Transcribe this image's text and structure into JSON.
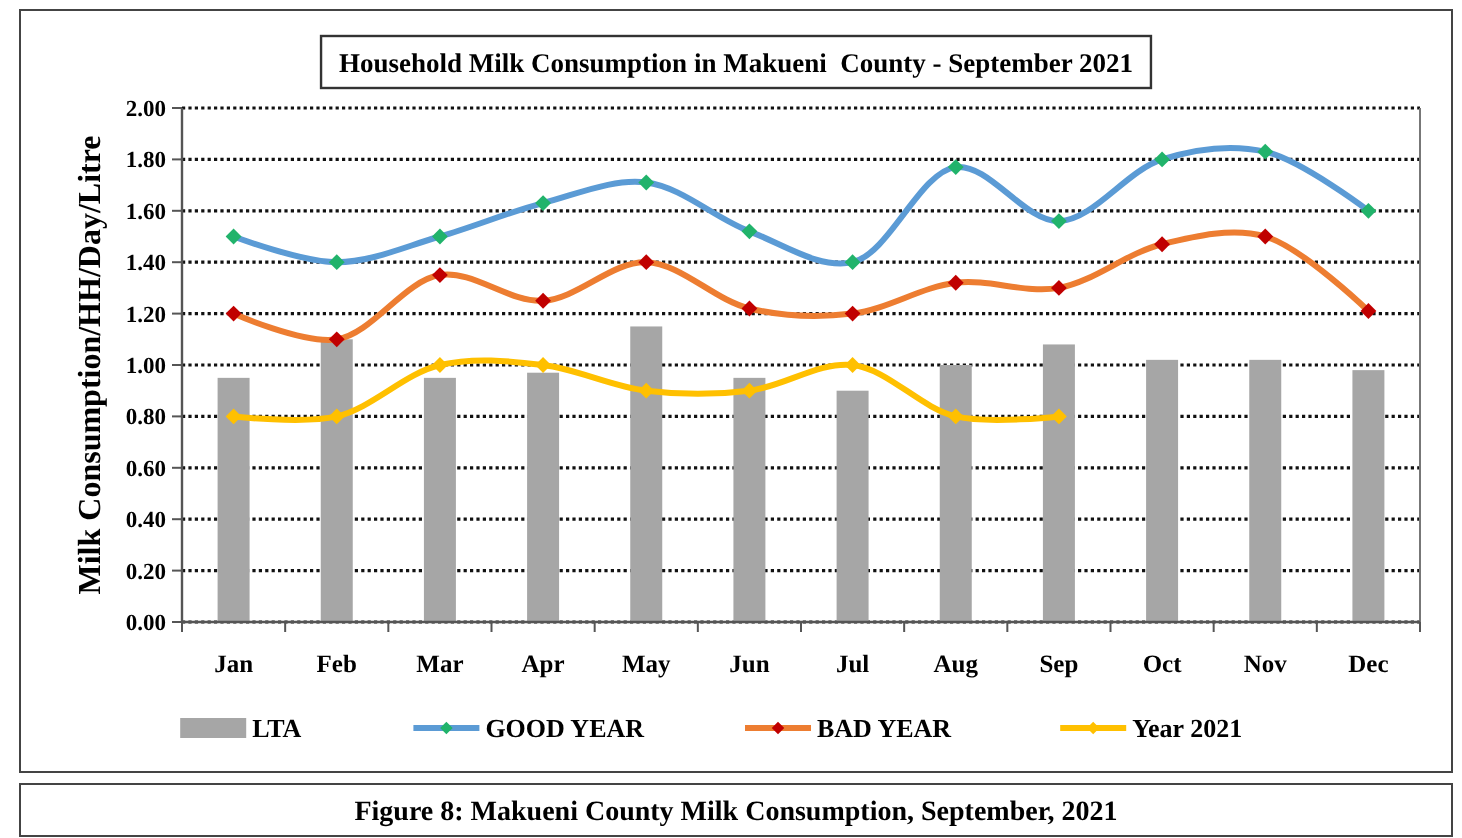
{
  "chart_data": {
    "type": "bar",
    "title": "Household Milk Consumption in Makueni  County - September 2021",
    "ylabel": "Milk Consumption/HH/Day/Litre",
    "categories": [
      "Jan",
      "Feb",
      "Mar",
      "Apr",
      "May",
      "Jun",
      "Jul",
      "Aug",
      "Sep",
      "Oct",
      "Nov",
      "Dec"
    ],
    "series": [
      {
        "name": "LTA",
        "color": "#a6a6a6",
        "values": [
          0.95,
          1.1,
          0.95,
          0.97,
          1.15,
          0.95,
          0.9,
          1.0,
          1.08,
          1.02,
          1.02,
          0.98
        ]
      },
      {
        "name": "GOOD YEAR",
        "type": "line",
        "color": "#5b9bd5",
        "colors": [
          "#21b36b",
          "#21b36b",
          "#21b36b",
          "#21b36b",
          "#21b36b",
          "#21b36b",
          "#21b36b",
          "#21b36b",
          "#21b36b",
          "#21b36b",
          "#21b36b",
          "#21b36b"
        ],
        "values": [
          1.5,
          1.4,
          1.5,
          1.63,
          1.71,
          1.52,
          1.4,
          1.77,
          1.56,
          1.8,
          1.83,
          1.6
        ]
      },
      {
        "name": "BAD YEAR",
        "type": "line",
        "color": "#ed7d31",
        "colors": [
          "#c00000",
          "#c00000",
          "#c00000",
          "#c00000",
          "#c00000",
          "#c00000",
          "#c00000",
          "#c00000",
          "#c00000",
          "#c00000",
          "#c00000",
          "#c00000"
        ],
        "values": [
          1.2,
          1.1,
          1.35,
          1.25,
          1.4,
          1.22,
          1.2,
          1.32,
          1.3,
          1.47,
          1.5,
          1.21
        ]
      },
      {
        "name": "Year 2021",
        "type": "line",
        "color": "#ffc000",
        "values": [
          0.8,
          0.8,
          1.0,
          1.0,
          0.9,
          0.9,
          1.0,
          0.8,
          0.8,
          null,
          null,
          null
        ]
      }
    ],
    "ylim": [
      0,
      2
    ],
    "yticks": [
      {
        "value": 0,
        "label": "0.00"
      },
      {
        "value": 0.2,
        "label": "0.20"
      },
      {
        "value": 0.4,
        "label": "0.40"
      },
      {
        "value": 0.6,
        "label": "0.60"
      },
      {
        "value": 0.8,
        "label": "0.80"
      },
      {
        "value": 1,
        "label": "1.00"
      },
      {
        "value": 1.2,
        "label": "1.20"
      },
      {
        "value": 1.4,
        "label": "1.40"
      },
      {
        "value": 1.6,
        "label": "1.60"
      },
      {
        "value": 1.8,
        "label": "1.80"
      },
      {
        "value": 2,
        "label": "2.00"
      }
    ],
    "grid": "y",
    "legend": "bottom",
    "marker": "diamond",
    "annotations": [
      "Figure 8: Makueni County Milk Consumption, September, 2021"
    ]
  }
}
